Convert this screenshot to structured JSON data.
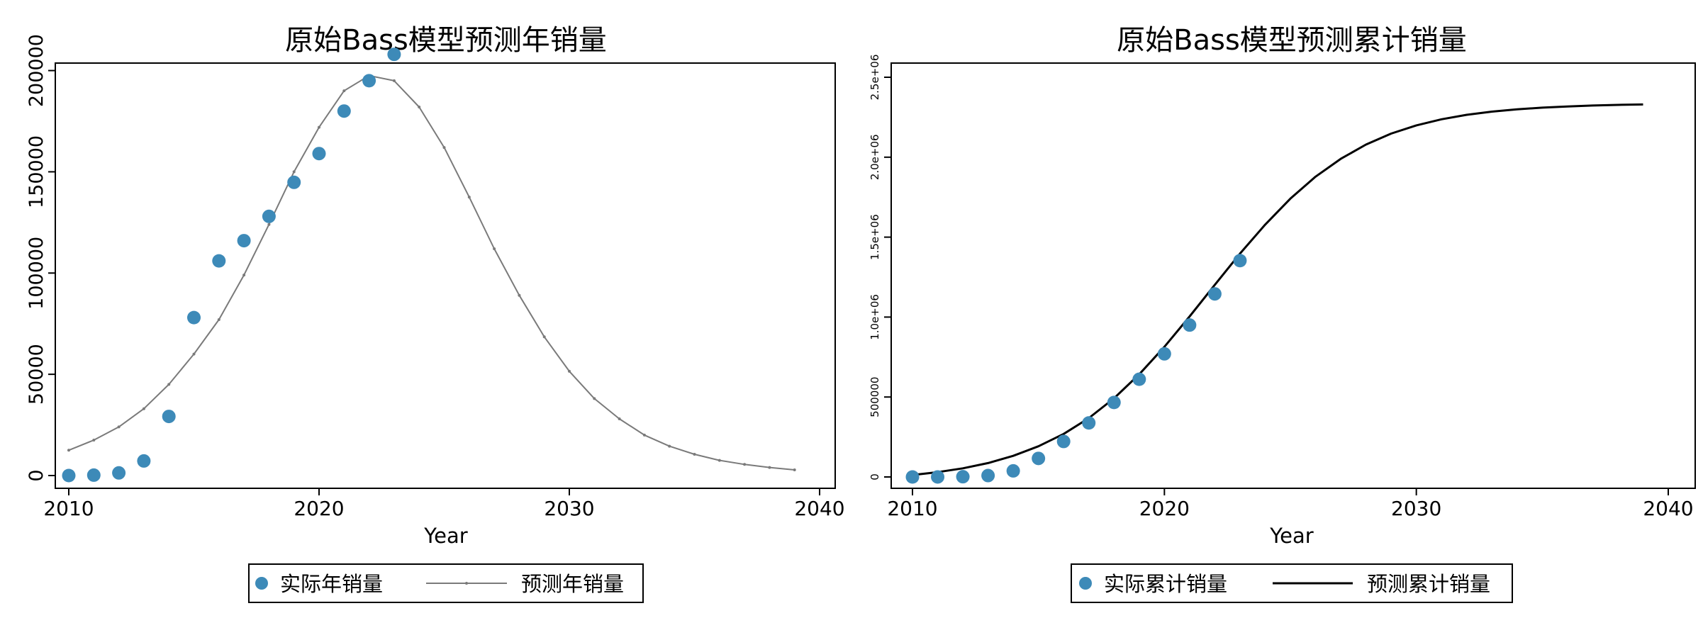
{
  "chart_data": [
    {
      "type": "scatter+line",
      "title": "原始Bass模型预测年销量",
      "xlabel": "Year",
      "ylabel": "",
      "xlim": [
        2010,
        2040
      ],
      "ylim": [
        0,
        210000
      ],
      "xticks": [
        2010,
        2020,
        2030,
        2040
      ],
      "xtick_labels": [
        "2010",
        "2020",
        "2030",
        "2040"
      ],
      "yticks": [
        0,
        50000,
        100000,
        150000,
        200000
      ],
      "ytick_labels": [
        "0",
        "50000",
        "100000",
        "150000",
        "200000"
      ],
      "ytick_rotation": "vertical",
      "grid": false,
      "legend": {
        "placement": "bottom-center"
      },
      "series": [
        {
          "name": "实际年销量",
          "kind": "scatter",
          "color": "#3D8AB8",
          "x": [
            2010,
            2011,
            2012,
            2013,
            2014,
            2015,
            2016,
            2017,
            2018,
            2019,
            2020,
            2021,
            2022,
            2023
          ],
          "y": [
            0,
            200,
            1300,
            7200,
            29200,
            78000,
            106000,
            116000,
            128000,
            144800,
            159000,
            180000,
            195000,
            208000
          ]
        },
        {
          "name": "预测年销量",
          "kind": "line-marker",
          "color": "#7a7a7a",
          "x": [
            2010,
            2011,
            2012,
            2013,
            2014,
            2015,
            2016,
            2017,
            2018,
            2019,
            2020,
            2021,
            2022,
            2023,
            2024,
            2025,
            2026,
            2027,
            2028,
            2029,
            2030,
            2031,
            2032,
            2033,
            2034,
            2035,
            2036,
            2037,
            2038,
            2039
          ],
          "y": [
            12500,
            17500,
            24000,
            33000,
            45000,
            60000,
            77000,
            99000,
            124000,
            150000,
            172000,
            190000,
            197500,
            195000,
            182000,
            162000,
            137500,
            112000,
            89000,
            68500,
            51500,
            38000,
            28000,
            20000,
            14500,
            10500,
            7500,
            5500,
            4000,
            2800
          ]
        }
      ]
    },
    {
      "type": "scatter+line",
      "title": "原始Bass模型预测累计销量",
      "xlabel": "Year",
      "ylabel": "",
      "xlim": [
        2010,
        2040
      ],
      "ylim": [
        0,
        2500000
      ],
      "xticks": [
        2010,
        2020,
        2030,
        2040
      ],
      "xtick_labels": [
        "2010",
        "2020",
        "2030",
        "2040"
      ],
      "yticks": [
        0,
        500000,
        1000000,
        1500000,
        2000000,
        2500000
      ],
      "ytick_labels": [
        "0",
        "500000",
        "1.0e+06",
        "1.5e+06",
        "2.0e+06",
        "2.5e+06"
      ],
      "ytick_rotation": "vertical",
      "grid": false,
      "legend": {
        "placement": "bottom-center"
      },
      "series": [
        {
          "name": "实际累计销量",
          "kind": "scatter",
          "color": "#3D8AB8",
          "x": [
            2010,
            2011,
            2012,
            2013,
            2014,
            2015,
            2016,
            2017,
            2018,
            2019,
            2020,
            2021,
            2022,
            2023
          ],
          "y": [
            0,
            200,
            1500,
            8700,
            38000,
            116000,
            222000,
            338000,
            466000,
            611000,
            770000,
            950000,
            1145000,
            1353000
          ]
        },
        {
          "name": "预测累计销量",
          "kind": "line",
          "color": "#000000",
          "x": [
            2010,
            2011,
            2012,
            2013,
            2014,
            2015,
            2016,
            2017,
            2018,
            2019,
            2020,
            2021,
            2022,
            2023,
            2024,
            2025,
            2026,
            2027,
            2028,
            2029,
            2030,
            2031,
            2032,
            2033,
            2034,
            2035,
            2036,
            2037,
            2038,
            2039
          ],
          "y": [
            12500,
            30000,
            54000,
            87000,
            132000,
            192000,
            269000,
            368000,
            492000,
            642000,
            814000,
            1004000,
            1201500,
            1396500,
            1578500,
            1740500,
            1878000,
            1990000,
            2079000,
            2147500,
            2199000,
            2237000,
            2265000,
            2285000,
            2299500,
            2310000,
            2317500,
            2323000,
            2327000,
            2329800
          ]
        }
      ]
    }
  ]
}
